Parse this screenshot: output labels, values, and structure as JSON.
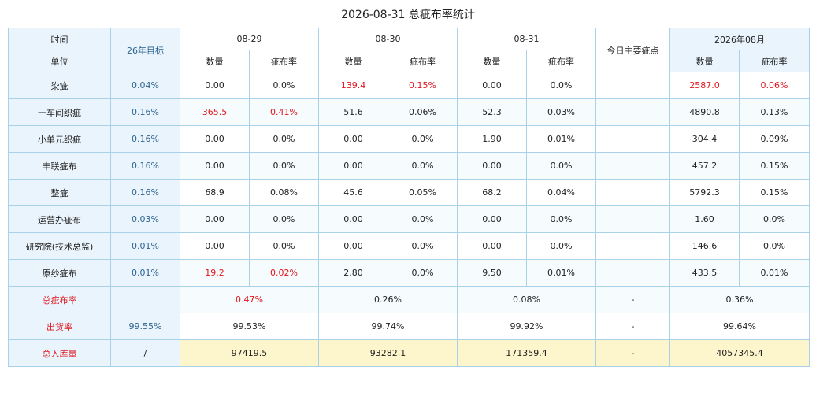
{
  "title": "2026-08-31 总疵布率统计",
  "header": {
    "time_label": "时间",
    "unit_label": "单位",
    "target_label": "26年目标",
    "dates": [
      "08-29",
      "08-30",
      "08-31"
    ],
    "main_defect_label": "今日主要疵点",
    "month_label": "2026年08月",
    "qty_label": "数量",
    "rate_label": "疵布率"
  },
  "rows": [
    {
      "unit": "染疵",
      "target": "0.04%",
      "d1q": "0.00",
      "d1r": "0.0%",
      "d2q": "139.4",
      "d2r": "0.15%",
      "d3q": "0.00",
      "d3r": "0.0%",
      "main": "",
      "mq": "2587.0",
      "mr": "0.06%"
    },
    {
      "unit": "一车间织疵",
      "target": "0.16%",
      "d1q": "365.5",
      "d1r": "0.41%",
      "d2q": "51.6",
      "d2r": "0.06%",
      "d3q": "52.3",
      "d3r": "0.03%",
      "main": "",
      "mq": "4890.8",
      "mr": "0.13%"
    },
    {
      "unit": "小单元织疵",
      "target": "0.16%",
      "d1q": "0.00",
      "d1r": "0.0%",
      "d2q": "0.00",
      "d2r": "0.0%",
      "d3q": "1.90",
      "d3r": "0.01%",
      "main": "",
      "mq": "304.4",
      "mr": "0.09%"
    },
    {
      "unit": "丰联疵布",
      "target": "0.16%",
      "d1q": "0.00",
      "d1r": "0.0%",
      "d2q": "0.00",
      "d2r": "0.0%",
      "d3q": "0.00",
      "d3r": "0.0%",
      "main": "",
      "mq": "457.2",
      "mr": "0.15%"
    },
    {
      "unit": "整疵",
      "target": "0.16%",
      "d1q": "68.9",
      "d1r": "0.08%",
      "d2q": "45.6",
      "d2r": "0.05%",
      "d3q": "68.2",
      "d3r": "0.04%",
      "main": "",
      "mq": "5792.3",
      "mr": "0.15%"
    },
    {
      "unit": "运营办疵布",
      "target": "0.03%",
      "d1q": "0.00",
      "d1r": "0.0%",
      "d2q": "0.00",
      "d2r": "0.0%",
      "d3q": "0.00",
      "d3r": "0.0%",
      "main": "",
      "mq": "1.60",
      "mr": "0.0%"
    },
    {
      "unit": "研究院(技术总监)",
      "target": "0.01%",
      "d1q": "0.00",
      "d1r": "0.0%",
      "d2q": "0.00",
      "d2r": "0.0%",
      "d3q": "0.00",
      "d3r": "0.0%",
      "main": "",
      "mq": "146.6",
      "mr": "0.0%"
    },
    {
      "unit": "原纱疵布",
      "target": "0.01%",
      "d1q": "19.2",
      "d1r": "0.02%",
      "d2q": "2.80",
      "d2r": "0.0%",
      "d3q": "9.50",
      "d3r": "0.01%",
      "main": "",
      "mq": "433.5",
      "mr": "0.01%"
    }
  ],
  "summary": [
    {
      "label": "总疵布率",
      "target": "",
      "d1": "0.47%",
      "d2": "0.26%",
      "d3": "0.08%",
      "main": "-",
      "month": "0.36%"
    },
    {
      "label": "出货率",
      "target": "99.55%",
      "d1": "99.53%",
      "d2": "99.74%",
      "d3": "99.92%",
      "main": "-",
      "month": "99.64%"
    },
    {
      "label": "总入库量",
      "target": "/",
      "d1": "97419.5",
      "d2": "93282.1",
      "d3": "171359.4",
      "main": "-",
      "month": "4057345.4"
    }
  ],
  "colors": {
    "header_bg": "#eaf4fc",
    "border": "#a9d2e9",
    "highlight_red": "#e0161d",
    "target_text": "#2b6290",
    "storage_bg": "#fdf5cc"
  }
}
